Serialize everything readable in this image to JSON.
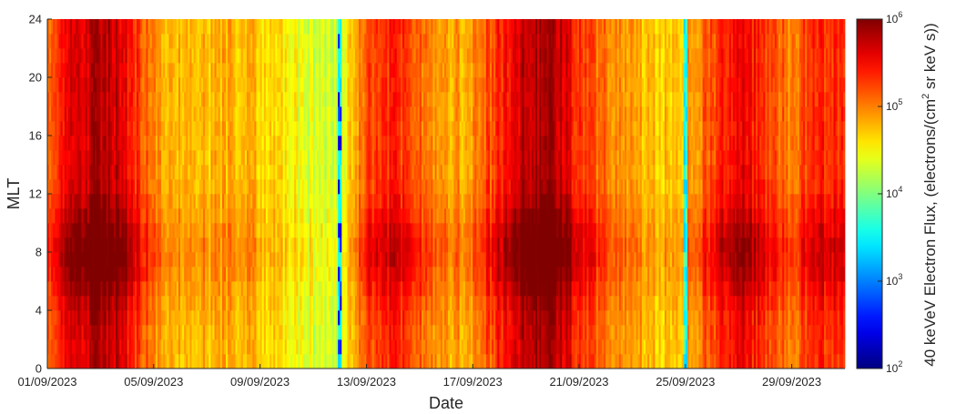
{
  "chart_data": {
    "type": "heatmap",
    "title": "",
    "xlabel": "Date",
    "ylabel": "MLT",
    "x_range": [
      "01/09/2023",
      "01/10/2023"
    ],
    "x_ticks": [
      "01/09/2023",
      "05/09/2023",
      "09/09/2023",
      "13/09/2023",
      "17/09/2023",
      "21/09/2023",
      "25/09/2023",
      "29/09/2023"
    ],
    "y_range": [
      0,
      24
    ],
    "y_ticks": [
      "0",
      "4",
      "8",
      "12",
      "16",
      "20",
      "24"
    ],
    "y_bin_hours": 1,
    "grid": false,
    "colorbar": {
      "label": "40 keVeV Electron Flux, (electrons/(cm",
      "label_sup": "2",
      "label_end": " sr keV s))",
      "scale": "log",
      "range": [
        100,
        1000000
      ],
      "ticks": [
        {
          "base": "10",
          "exp": "2"
        },
        {
          "base": "10",
          "exp": "3"
        },
        {
          "base": "10",
          "exp": "4"
        },
        {
          "base": "10",
          "exp": "5"
        },
        {
          "base": "10",
          "exp": "6"
        }
      ],
      "colormap": "jet"
    },
    "daily_log10_flux_noon_midnight": [
      5.05,
      5.55,
      5.85,
      5.55,
      4.95,
      4.75,
      4.75,
      4.8,
      4.7,
      4.5,
      4.35,
      4.25,
      5.25,
      5.35,
      5.15,
      4.85,
      4.9,
      5.35,
      5.8,
      5.85,
      5.35,
      5.0,
      4.85,
      4.7,
      4.85,
      5.2,
      5.65,
      5.25,
      5.0,
      5.35
    ],
    "morning_sector_extra_log10": 0.35,
    "dropouts": [
      {
        "date": "12/09/2023",
        "min_log10_flux": 2.3
      },
      {
        "date": "25/09/2023",
        "min_log10_flux": 3.5
      }
    ]
  }
}
